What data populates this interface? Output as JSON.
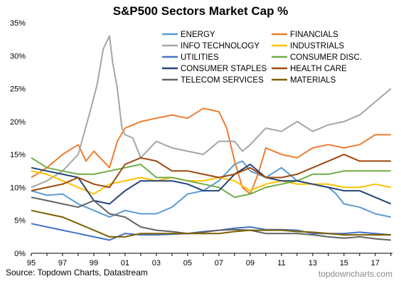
{
  "chart_data": {
    "type": "line",
    "title": "S&P500 Sectors Market Cap %",
    "xlabel": "",
    "ylabel": "",
    "x_range": [
      1995,
      2018.1
    ],
    "ylim": [
      0,
      35
    ],
    "y_ticks": [
      "0%",
      "5%",
      "10%",
      "15%",
      "20%",
      "25%",
      "30%",
      "35%"
    ],
    "x_ticks": [
      "95",
      "97",
      "99",
      "01",
      "03",
      "05",
      "07",
      "09",
      "11",
      "13",
      "15",
      "17"
    ],
    "grid": false,
    "legend_position": "top",
    "series": [
      {
        "name": "ENERGY",
        "color": "#5b9bd5",
        "x": [
          1995,
          1996,
          1997,
          1998,
          1999,
          2000,
          2001,
          2002,
          2003,
          2004,
          2005,
          2006,
          2007,
          2008,
          2008.5,
          2009,
          2010,
          2011,
          2011.5,
          2012,
          2013,
          2014,
          2014.5,
          2015,
          2016,
          2017,
          2018
        ],
        "y": [
          9.5,
          8.8,
          9.0,
          7.5,
          6.5,
          5.5,
          6.5,
          6.0,
          6.0,
          7.0,
          9.0,
          9.5,
          11.0,
          13.5,
          14.0,
          12.5,
          11.5,
          13.0,
          12.0,
          11.0,
          10.5,
          10.0,
          9.0,
          7.5,
          7.0,
          6.0,
          5.5
        ]
      },
      {
        "name": "FINANCIALS",
        "color": "#ed7d31",
        "x": [
          1995,
          1996,
          1997,
          1998,
          1998.5,
          1999,
          2000,
          2000.5,
          2001,
          2002,
          2003,
          2004,
          2005,
          2006,
          2007,
          2007.5,
          2008,
          2008.5,
          2009,
          2009.5,
          2010,
          2011,
          2012,
          2013,
          2014,
          2015,
          2016,
          2017,
          2018
        ],
        "y": [
          11.5,
          13.0,
          15.0,
          16.5,
          14.0,
          15.5,
          13.0,
          17.0,
          19.0,
          20.0,
          20.5,
          21.0,
          20.5,
          22.0,
          21.5,
          19.0,
          14.0,
          10.0,
          9.0,
          12.0,
          16.0,
          15.0,
          14.5,
          16.0,
          16.5,
          16.0,
          16.5,
          18.0,
          18.0
        ]
      },
      {
        "name": "INFO TECHNOLOGY",
        "color": "#a5a5a5",
        "x": [
          1995,
          1996,
          1997,
          1998,
          1998.7,
          1999.2,
          1999.6,
          2000.0,
          2000.2,
          2000.5,
          2000.8,
          2001,
          2001.5,
          2002,
          2003,
          2004,
          2005,
          2006,
          2006.5,
          2007,
          2008,
          2008.5,
          2009,
          2010,
          2011,
          2012,
          2013,
          2014,
          2015,
          2016,
          2017,
          2018
        ],
        "y": [
          10.0,
          11.0,
          12.5,
          15.0,
          21.0,
          25.5,
          31.0,
          33.0,
          29.0,
          25.0,
          19.0,
          18.0,
          17.5,
          14.5,
          17.0,
          16.0,
          15.5,
          15.0,
          16.0,
          17.0,
          17.0,
          15.5,
          16.5,
          19.0,
          18.5,
          20.0,
          18.5,
          19.5,
          20.0,
          21.0,
          23.0,
          25.0
        ]
      },
      {
        "name": "INDUSTRIALS",
        "color": "#ffc000",
        "x": [
          1995,
          1996,
          1997,
          1998,
          1999,
          2000,
          2001,
          2002,
          2003,
          2004,
          2005,
          2006,
          2007,
          2008,
          2009,
          2010,
          2011,
          2012,
          2013,
          2014,
          2015,
          2016,
          2017,
          2018
        ],
        "y": [
          12.5,
          12.0,
          11.0,
          10.0,
          9.0,
          10.5,
          11.0,
          11.5,
          11.0,
          11.5,
          11.0,
          11.0,
          11.5,
          11.0,
          9.5,
          10.5,
          11.0,
          10.5,
          10.5,
          10.5,
          10.0,
          10.0,
          10.5,
          10.0
        ]
      },
      {
        "name": "UTILITIES",
        "color": "#4472c4",
        "x": [
          1995,
          1996,
          1997,
          1998,
          1999,
          2000,
          2001,
          2002,
          2003,
          2004,
          2005,
          2006,
          2007,
          2008,
          2009,
          2010,
          2011,
          2012,
          2013,
          2014,
          2015,
          2016,
          2017,
          2018
        ],
        "y": [
          4.5,
          4.0,
          3.5,
          3.0,
          2.5,
          2.0,
          3.0,
          2.8,
          2.8,
          2.9,
          3.0,
          3.3,
          3.5,
          3.8,
          4.0,
          3.6,
          3.6,
          3.5,
          3.0,
          3.0,
          3.0,
          3.2,
          3.0,
          2.8
        ]
      },
      {
        "name": "CONSUMER DISC.",
        "color": "#70ad47",
        "x": [
          1995,
          1996,
          1997,
          1998,
          1999,
          2000,
          2001,
          2002,
          2003,
          2004,
          2005,
          2006,
          2007,
          2008,
          2009,
          2010,
          2011,
          2012,
          2013,
          2014,
          2015,
          2016,
          2017,
          2018
        ],
        "y": [
          14.5,
          13.0,
          12.5,
          12.0,
          12.0,
          12.5,
          13.0,
          13.5,
          11.5,
          11.5,
          11.0,
          10.5,
          10.0,
          8.5,
          9.0,
          10.0,
          10.5,
          11.0,
          12.0,
          12.0,
          12.5,
          12.5,
          12.5,
          12.5
        ]
      },
      {
        "name": "CONSUMER STAPLES",
        "color": "#264478",
        "x": [
          1995,
          1996,
          1997,
          1998,
          1999,
          2000,
          2001,
          2002,
          2003,
          2004,
          2005,
          2006,
          2007,
          2008,
          2009,
          2010,
          2011,
          2012,
          2013,
          2014,
          2015,
          2016,
          2017,
          2018
        ],
        "y": [
          13.0,
          12.5,
          12.0,
          11.5,
          8.0,
          7.5,
          9.5,
          11.0,
          11.0,
          11.0,
          10.5,
          9.5,
          9.5,
          12.0,
          13.5,
          11.5,
          11.0,
          11.0,
          10.5,
          10.0,
          9.5,
          9.5,
          8.5,
          7.5
        ]
      },
      {
        "name": "HEALTH CARE",
        "color": "#9e480e",
        "x": [
          1995,
          1996,
          1997,
          1998,
          1999,
          2000,
          2001,
          2002,
          2003,
          2004,
          2005,
          2006,
          2007,
          2008,
          2009,
          2010,
          2011,
          2012,
          2013,
          2014,
          2015,
          2016,
          2017,
          2018
        ],
        "y": [
          9.5,
          10.0,
          10.5,
          11.5,
          10.5,
          10.0,
          13.5,
          14.5,
          14.0,
          12.5,
          12.5,
          12.0,
          11.5,
          12.0,
          13.0,
          11.5,
          11.5,
          12.0,
          13.0,
          14.0,
          15.0,
          14.0,
          14.0,
          14.0
        ]
      },
      {
        "name": "TELECOM SERVICES",
        "color": "#636363",
        "x": [
          1995,
          1996,
          1997,
          1998,
          1999,
          2000,
          2001,
          2002,
          2003,
          2004,
          2005,
          2006,
          2007,
          2008,
          2009,
          2010,
          2011,
          2012,
          2013,
          2014,
          2015,
          2016,
          2017,
          2018
        ],
        "y": [
          8.5,
          8.0,
          7.5,
          7.0,
          8.0,
          6.0,
          5.5,
          4.0,
          3.5,
          3.3,
          3.0,
          3.2,
          3.5,
          3.6,
          3.5,
          3.0,
          3.0,
          3.0,
          2.8,
          2.5,
          2.3,
          2.5,
          2.2,
          2.0
        ]
      },
      {
        "name": "MATERIALS",
        "color": "#7f6000",
        "x": [
          1995,
          1996,
          1997,
          1998,
          1999,
          2000,
          2001,
          2002,
          2003,
          2004,
          2005,
          2006,
          2007,
          2008,
          2009,
          2010,
          2011,
          2012,
          2013,
          2014,
          2015,
          2016,
          2017,
          2018
        ],
        "y": [
          6.5,
          6.0,
          5.5,
          4.5,
          3.5,
          2.5,
          2.5,
          3.0,
          3.0,
          3.0,
          3.0,
          3.0,
          3.0,
          3.3,
          3.5,
          3.5,
          3.5,
          3.3,
          3.2,
          3.0,
          2.8,
          2.8,
          2.8,
          2.8
        ]
      }
    ]
  },
  "source_text": "Source: Topdown Charts, Datastream",
  "watermark_text": "topdowncharts.com"
}
